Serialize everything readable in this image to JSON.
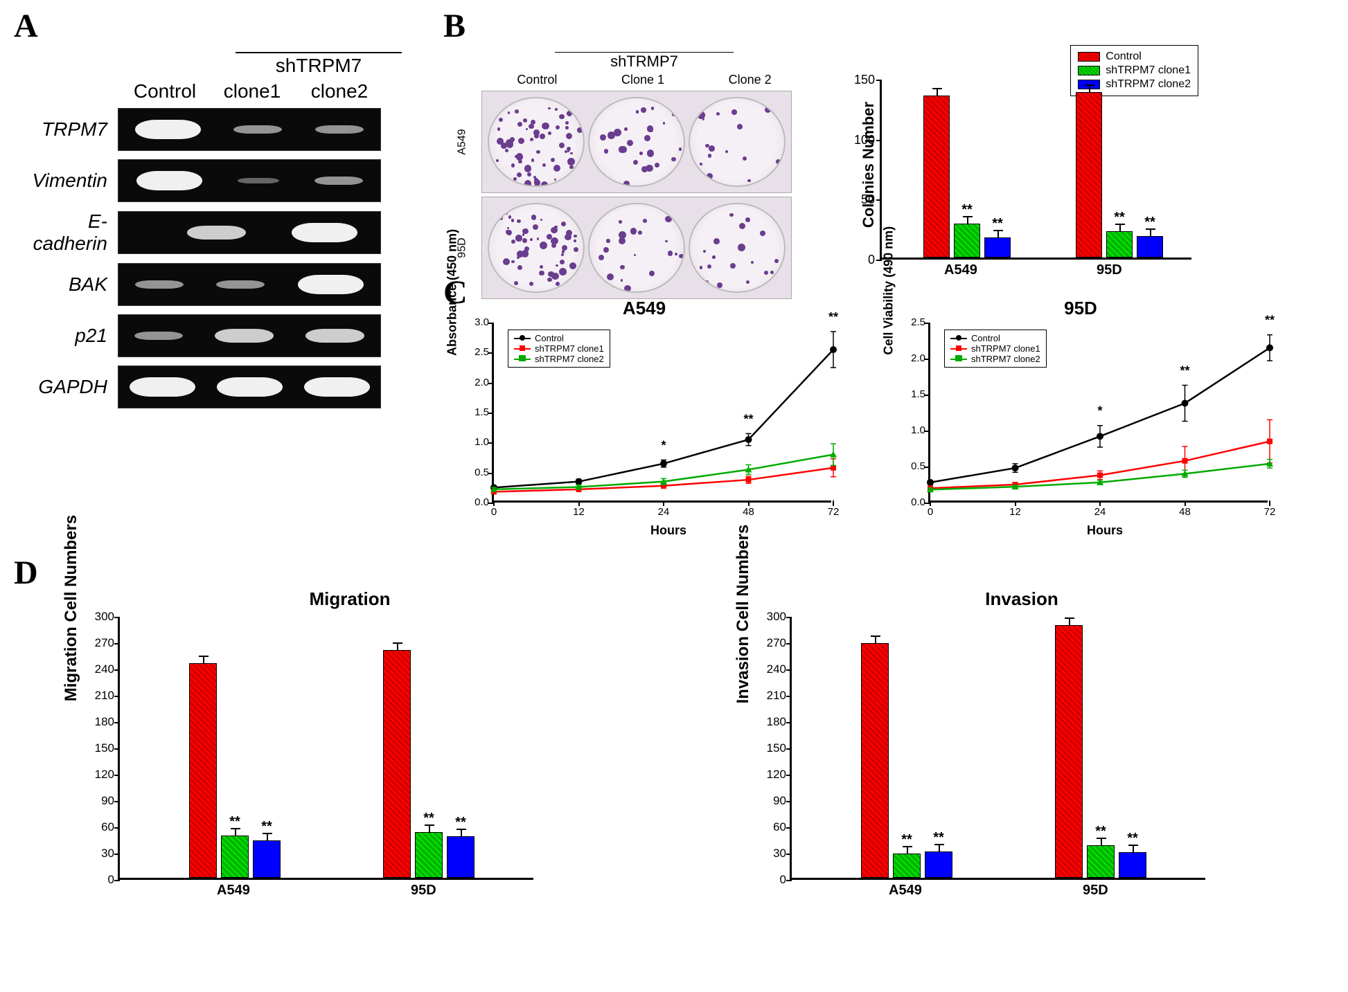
{
  "panelA": {
    "label": "A",
    "header_bracket": "shTRPM7",
    "columns": [
      "Control",
      "clone1",
      "clone2"
    ],
    "rows": [
      {
        "name": "TRPM7",
        "intensities": [
          "strong",
          "weak",
          "weak"
        ]
      },
      {
        "name": "Vimentin",
        "intensities": [
          "strong",
          "faint",
          "weak"
        ]
      },
      {
        "name": "E-cadherin",
        "intensities": [
          "none",
          "medium",
          "strong"
        ]
      },
      {
        "name": "BAK",
        "intensities": [
          "weak",
          "weak",
          "strong"
        ]
      },
      {
        "name": "p21",
        "intensities": [
          "weak",
          "medium",
          "medium"
        ]
      },
      {
        "name": "GAPDH",
        "intensities": [
          "strong",
          "strong",
          "strong"
        ]
      }
    ],
    "label_fontsize": 28,
    "background_color": "#0a0a0a",
    "band_color": "#f0f0f0"
  },
  "panelB": {
    "label": "B",
    "colony_header": "shTRMP7",
    "colony_sub_labels": [
      "Control",
      "Clone 1",
      "Clone 2"
    ],
    "colony_row_labels": [
      "A549",
      "95D"
    ],
    "colony_counts": [
      [
        135,
        28,
        17
      ],
      [
        138,
        22,
        18
      ]
    ],
    "chart": {
      "type": "bar",
      "ylabel": "Colonies Number",
      "ylim": [
        0,
        150
      ],
      "ytick_step": 50,
      "categories": [
        "A549",
        "95D"
      ],
      "series": [
        {
          "name": "Control",
          "color": "#ff0000",
          "values": [
            135,
            138
          ],
          "errors": [
            6,
            8
          ]
        },
        {
          "name": "shTRPM7 clone1",
          "color": "#00dd00",
          "values": [
            28,
            22
          ],
          "errors": [
            6,
            5
          ],
          "sig": "**"
        },
        {
          "name": "shTRPM7 clone2",
          "color": "#0000ff",
          "values": [
            17,
            18
          ],
          "errors": [
            4,
            4
          ],
          "sig": "**"
        }
      ],
      "label_fontsize": 22
    }
  },
  "panelC": {
    "label": "C",
    "charts": [
      {
        "title": "A549",
        "type": "line",
        "xlabel": "Hours",
        "ylabel": "Absorbance (450 nm)",
        "x_values": [
          0,
          12,
          24,
          48,
          72
        ],
        "ylim": [
          0,
          3.0
        ],
        "ytick_step": 0.5,
        "series": [
          {
            "name": "Control",
            "color": "#000000",
            "marker": "circle",
            "values": [
              0.25,
              0.35,
              0.65,
              1.05,
              2.55
            ],
            "errors": [
              0.03,
              0.04,
              0.06,
              0.1,
              0.3
            ]
          },
          {
            "name": "shTRPM7 clone1",
            "color": "#ff0000",
            "marker": "square",
            "values": [
              0.18,
              0.22,
              0.28,
              0.38,
              0.58
            ],
            "errors": [
              0.02,
              0.03,
              0.04,
              0.06,
              0.15
            ]
          },
          {
            "name": "shTRPM7 clone2",
            "color": "#00aa00",
            "marker": "triangle",
            "values": [
              0.22,
              0.26,
              0.35,
              0.55,
              0.8
            ],
            "errors": [
              0.03,
              0.03,
              0.05,
              0.08,
              0.18
            ]
          }
        ],
        "sig_marks": [
          {
            "x": 24,
            "label": "*"
          },
          {
            "x": 48,
            "label": "**"
          },
          {
            "x": 72,
            "label": "**"
          }
        ]
      },
      {
        "title": "95D",
        "type": "line",
        "xlabel": "Hours",
        "ylabel": "Cell Viability (490 nm)",
        "x_values": [
          0,
          12,
          24,
          48,
          72
        ],
        "ylim": [
          0,
          2.5
        ],
        "ytick_step": 0.5,
        "series": [
          {
            "name": "Control",
            "color": "#000000",
            "marker": "circle",
            "values": [
              0.28,
              0.48,
              0.92,
              1.38,
              2.15
            ],
            "errors": [
              0.03,
              0.06,
              0.15,
              0.25,
              0.18
            ]
          },
          {
            "name": "shTRPM7 clone1",
            "color": "#ff0000",
            "marker": "square",
            "values": [
              0.2,
              0.25,
              0.38,
              0.58,
              0.85
            ],
            "errors": [
              0.02,
              0.03,
              0.06,
              0.2,
              0.3
            ]
          },
          {
            "name": "shTRPM7 clone2",
            "color": "#00aa00",
            "marker": "triangle",
            "values": [
              0.18,
              0.22,
              0.28,
              0.4,
              0.54
            ],
            "errors": [
              0.02,
              0.02,
              0.03,
              0.05,
              0.06
            ]
          }
        ],
        "sig_marks": [
          {
            "x": 24,
            "label": "*"
          },
          {
            "x": 48,
            "label": "**"
          },
          {
            "x": 72,
            "label": "**"
          }
        ]
      }
    ]
  },
  "panelD": {
    "label": "D",
    "charts": [
      {
        "title": "Migration",
        "type": "bar",
        "ylabel": "Migration Cell Numbers",
        "ylim": [
          0,
          300
        ],
        "ytick_step": 30,
        "categories": [
          "A549",
          "95D"
        ],
        "series": [
          {
            "name": "Control",
            "color": "#ff0000",
            "pattern": "hatch",
            "values": [
              245,
              260
            ],
            "errors": [
              12,
              13
            ]
          },
          {
            "name": "shTRPM7 clone1",
            "color": "#00dd00",
            "pattern": "hatch",
            "values": [
              48,
              52
            ],
            "errors": [
              8,
              9
            ],
            "sig": "**"
          },
          {
            "name": "shTRPM7 clone2",
            "color": "#0000ff",
            "pattern": "solid",
            "values": [
              43,
              47
            ],
            "errors": [
              8,
              8
            ],
            "sig": "**"
          }
        ]
      },
      {
        "title": "Invasion",
        "type": "bar",
        "ylabel": "Invasion Cell Numbers",
        "ylim": [
          0,
          300
        ],
        "ytick_step": 30,
        "categories": [
          "A549",
          "95D"
        ],
        "series": [
          {
            "name": "Control",
            "color": "#ff0000",
            "pattern": "hatch",
            "values": [
              268,
              288
            ],
            "errors": [
              8,
              10
            ]
          },
          {
            "name": "shTRPM7 clone1",
            "color": "#00dd00",
            "pattern": "hatch",
            "values": [
              28,
              37
            ],
            "errors": [
              7,
              8
            ],
            "sig": "**"
          },
          {
            "name": "shTRPM7 clone2",
            "color": "#0000ff",
            "pattern": "solid",
            "values": [
              30,
              29
            ],
            "errors": [
              10,
              9
            ],
            "sig": "**"
          }
        ]
      }
    ]
  },
  "colors": {
    "control": "#ff0000",
    "clone1": "#00dd00",
    "clone2": "#0000ff",
    "line_control": "#000000",
    "line_clone1": "#ff0000",
    "line_clone2": "#00aa00",
    "colony_dot": "#6a3d8f",
    "dish_bg": "#f5f0f5"
  }
}
